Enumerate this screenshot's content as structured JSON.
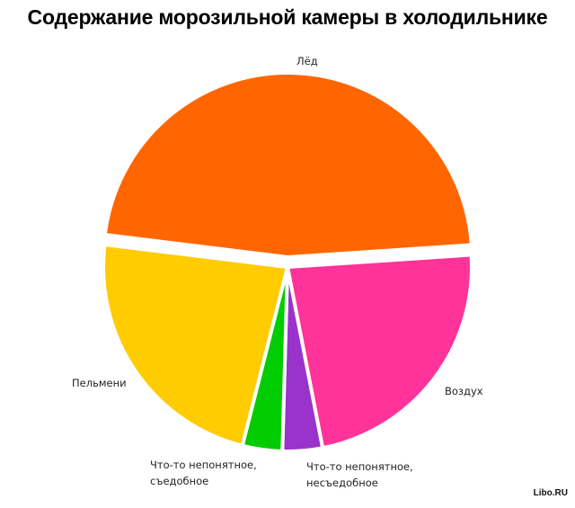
{
  "chart_data": {
    "type": "pie",
    "title": "Содержание морозильной камеры в холодильнике",
    "categories": [
      "Лёд",
      "Воздух",
      "Что-то непонятное, несъедобное",
      "Что-то непонятное, съедобное",
      "Пельмени"
    ],
    "values": [
      47,
      23,
      3.5,
      3.5,
      23
    ],
    "colors": [
      "#ff6600",
      "#ff3399",
      "#9933cc",
      "#00cc00",
      "#ffcc00"
    ],
    "exploded": [
      "Лёд"
    ],
    "start_angle_deg_clockwise_from_top": -83,
    "legend": "none (labels beside slices)"
  },
  "labels": {
    "ice": "Лёд",
    "air": "Воздух",
    "inedible": "Что-то непонятное,\nнесъедобное",
    "edible": "Что-то непонятное,\nсъедобное",
    "dumplings": "Пельмени"
  },
  "watermark": "Libo.RU"
}
